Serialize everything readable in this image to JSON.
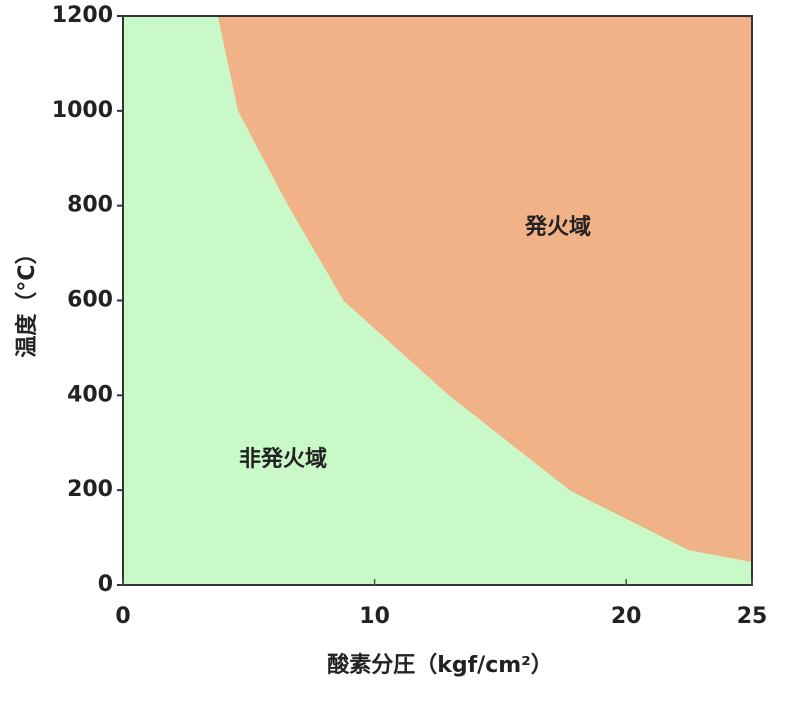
{
  "chart_data": {
    "type": "area",
    "x_label": "酸素分圧（kgf/cm²）",
    "y_label": "温度（°C）",
    "x": [
      3.8,
      4.6,
      6.6,
      8.8,
      13,
      17.8,
      22.5,
      25
    ],
    "values": [
      1200,
      1000,
      800,
      600,
      400,
      200,
      75,
      50
    ],
    "regions": [
      {
        "name": "発火域",
        "color": "#f2b287",
        "side": "above"
      },
      {
        "name": "非発火域",
        "color": "#c9f8c9",
        "side": "below"
      }
    ],
    "xlim": [
      0,
      25
    ],
    "xticks": [
      0,
      10,
      20,
      25
    ],
    "ylim": [
      0,
      1200
    ],
    "yticks": [
      0,
      200,
      400,
      600,
      800,
      1000,
      1200
    ]
  }
}
